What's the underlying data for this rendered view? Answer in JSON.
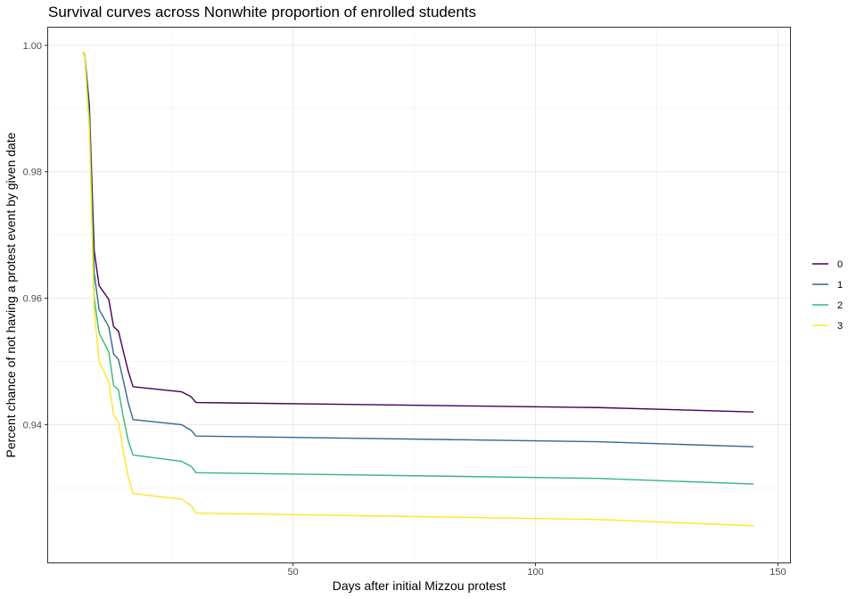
{
  "chart_data": {
    "type": "line",
    "title": "Survival curves across Nonwhite proportion of enrolled students",
    "xlabel": "Days after initial Mizzou protest",
    "ylabel": "Percent chance of not having a protest event by given date",
    "xlim": [
      -0.5,
      152.5
    ],
    "ylim": [
      0.9182,
      1.0028
    ],
    "x_ticks": [
      50,
      100,
      150
    ],
    "x_minor_ticks": [
      25,
      75,
      125
    ],
    "y_ticks": [
      0.94,
      0.96,
      0.98,
      1.0
    ],
    "y_tick_labels": [
      "0.94",
      "0.96",
      "0.98",
      "1.00"
    ],
    "y_minor_ticks": [
      0.93,
      0.95,
      0.97,
      0.99
    ],
    "grid": true,
    "legend_position": "right",
    "series": [
      {
        "name": "0",
        "color": "#440154",
        "x": [
          6.5,
          7,
          8,
          9,
          10,
          12,
          13,
          14,
          15,
          16,
          17,
          27,
          29,
          30,
          113,
          145
        ],
        "y": [
          0.9988,
          0.9988,
          0.9905,
          0.9675,
          0.962,
          0.9598,
          0.9555,
          0.9548,
          0.9516,
          0.9485,
          0.946,
          0.9452,
          0.9444,
          0.9435,
          0.9427,
          0.942
        ]
      },
      {
        "name": "1",
        "color": "#31688E",
        "x": [
          6.5,
          7,
          8,
          9,
          10,
          12,
          13,
          14,
          15,
          16,
          17,
          27,
          29,
          30,
          113,
          145
        ],
        "y": [
          0.9988,
          0.9988,
          0.989,
          0.964,
          0.9582,
          0.9555,
          0.9512,
          0.9503,
          0.947,
          0.9435,
          0.9408,
          0.94,
          0.9391,
          0.9382,
          0.9373,
          0.9365
        ]
      },
      {
        "name": "2",
        "color": "#35B779",
        "x": [
          6.5,
          7,
          8,
          9,
          10,
          12,
          13,
          14,
          15,
          16,
          17,
          27,
          29,
          30,
          113,
          145
        ],
        "y": [
          0.9988,
          0.9988,
          0.988,
          0.96,
          0.9545,
          0.9515,
          0.9462,
          0.9455,
          0.9412,
          0.9375,
          0.9352,
          0.9342,
          0.9334,
          0.9324,
          0.9315,
          0.9306
        ]
      },
      {
        "name": "3",
        "color": "#FDE725",
        "x": [
          6.5,
          7,
          8,
          9,
          10,
          12,
          13,
          14,
          15,
          16,
          17,
          27,
          29,
          30,
          113,
          145
        ],
        "y": [
          0.9988,
          0.9988,
          0.9865,
          0.958,
          0.95,
          0.9468,
          0.9415,
          0.9405,
          0.9358,
          0.9318,
          0.9291,
          0.9282,
          0.9272,
          0.926,
          0.925,
          0.924
        ]
      }
    ]
  }
}
